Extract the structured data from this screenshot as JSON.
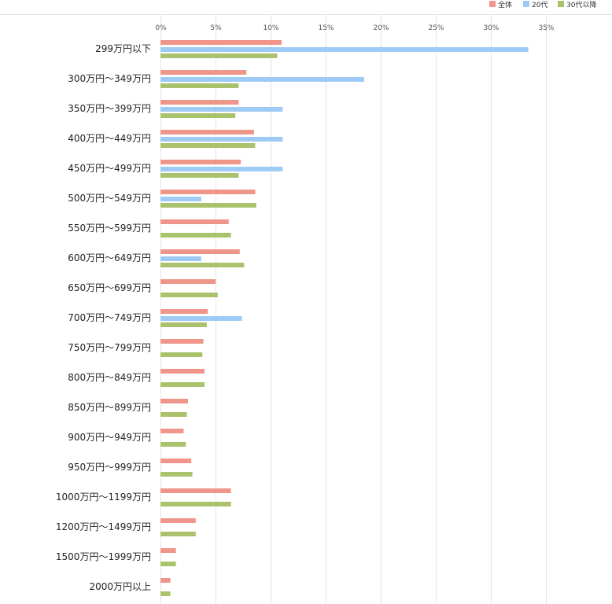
{
  "chart_data": {
    "type": "bar",
    "orientation": "horizontal",
    "categories": [
      "299万円以下",
      "300万円～349万円",
      "350万円～399万円",
      "400万円～449万円",
      "450万円～499万円",
      "500万円～549万円",
      "550万円～599万円",
      "600万円～649万円",
      "650万円～699万円",
      "700万円～749万円",
      "750万円～799万円",
      "800万円～849万円",
      "850万円～899万円",
      "900万円～949万円",
      "950万円～999万円",
      "1000万円～1199万円",
      "1200万円～1499万円",
      "1500万円～1999万円",
      "2000万円以上"
    ],
    "series": [
      {
        "name": "全体",
        "color": "#f0958a",
        "values": [
          11.0,
          7.8,
          7.1,
          8.5,
          7.3,
          8.6,
          6.2,
          7.2,
          5.0,
          4.3,
          3.9,
          4.0,
          2.5,
          2.1,
          2.8,
          6.4,
          3.2,
          1.4,
          0.9
        ]
      },
      {
        "name": "20代",
        "color": "#9ecbf5",
        "values": [
          33.4,
          18.5,
          11.1,
          11.1,
          11.1,
          3.7,
          0,
          3.7,
          0,
          7.4,
          0,
          0,
          0,
          0,
          0,
          0,
          0,
          0,
          0
        ]
      },
      {
        "name": "30代以降",
        "color": "#a9c26b",
        "values": [
          10.6,
          7.1,
          6.8,
          8.6,
          7.1,
          8.7,
          6.4,
          7.6,
          5.2,
          4.2,
          3.8,
          4.0,
          2.4,
          2.3,
          2.9,
          6.4,
          3.2,
          1.4,
          0.9
        ]
      }
    ],
    "x_ticks": [
      "0%",
      "5%",
      "10%",
      "15%",
      "20%",
      "25%",
      "30%",
      "35%"
    ],
    "xlim": [
      0,
      40
    ],
    "xlabel": "",
    "ylabel": "",
    "legend_position": "top-right",
    "grid": true
  }
}
